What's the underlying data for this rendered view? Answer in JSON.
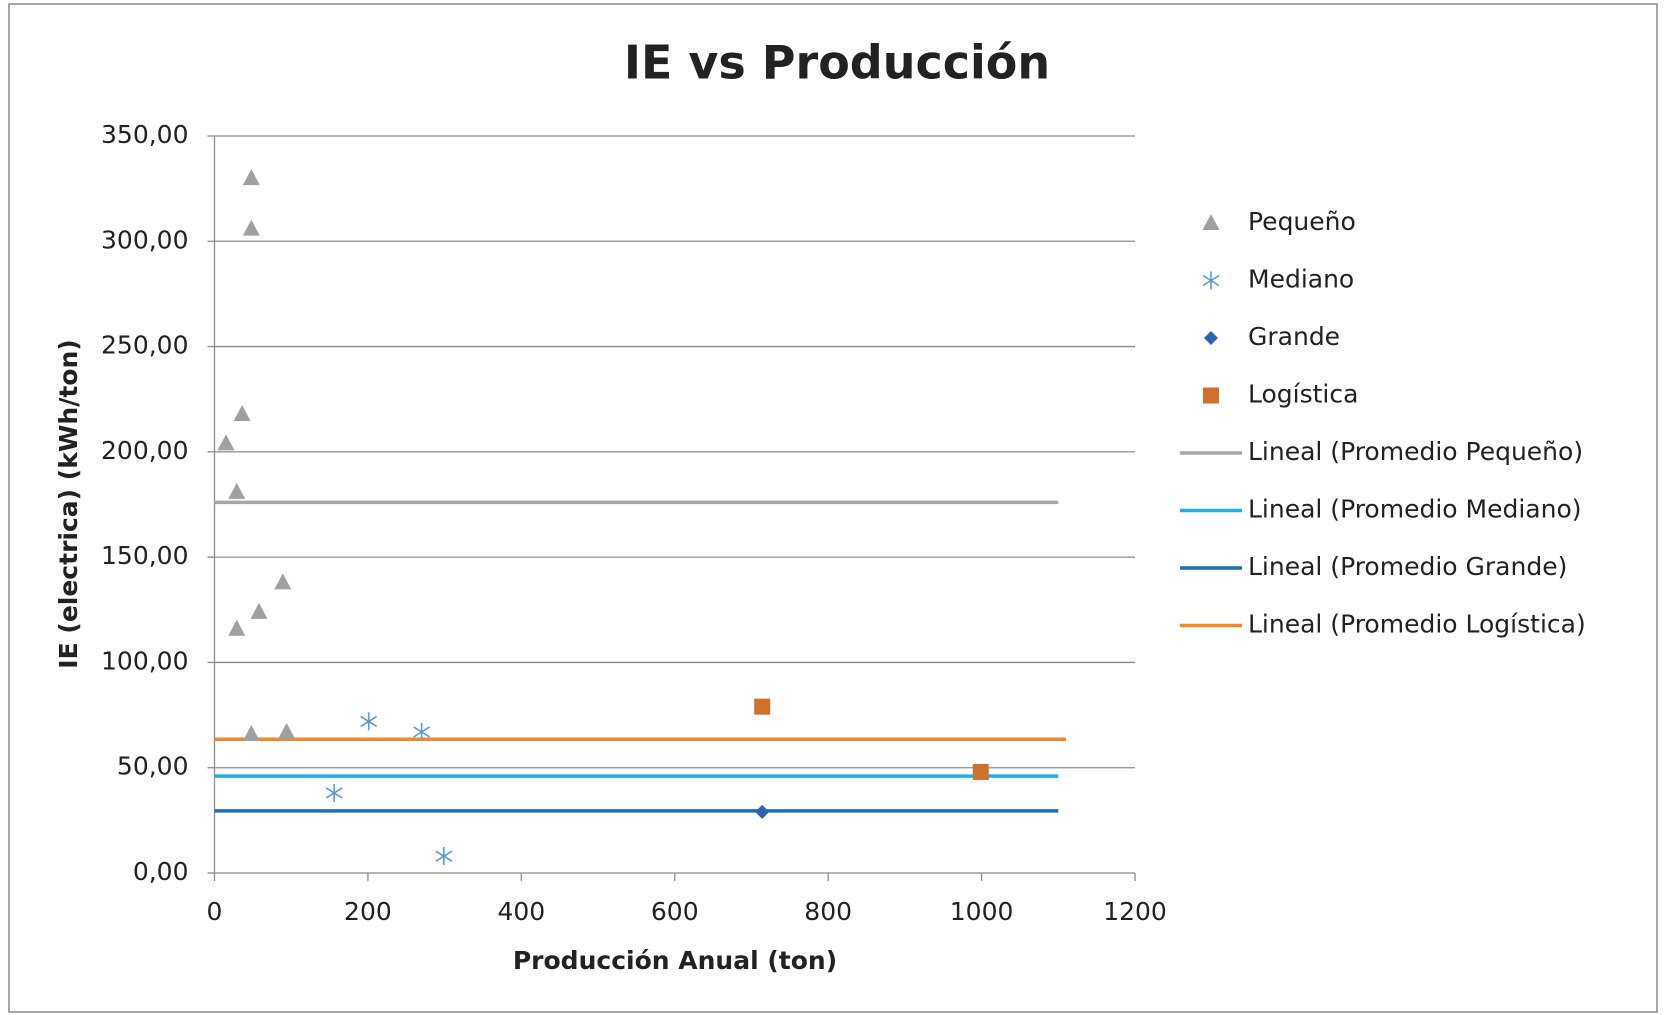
{
  "chart_data": {
    "type": "scatter",
    "title": "IE vs Producción",
    "xlabel": "Producción Anual (ton)",
    "ylabel": "IE (electrica) (kWh/ton)",
    "xlim": [
      0,
      1200
    ],
    "xticks": [
      0,
      200,
      400,
      600,
      800,
      1000,
      1200
    ],
    "ylim": [
      0,
      350
    ],
    "yticks": [
      {
        "value": 0,
        "label": "0,00"
      },
      {
        "value": 50,
        "label": "50,00"
      },
      {
        "value": 100,
        "label": "100,00"
      },
      {
        "value": 150,
        "label": "150,00"
      },
      {
        "value": 200,
        "label": "200,00"
      },
      {
        "value": 250,
        "label": "250,00"
      },
      {
        "value": 300,
        "label": "300,00"
      },
      {
        "value": 350,
        "label": "350,00"
      }
    ],
    "grid": true,
    "legend": "right",
    "series": [
      {
        "name": "Pequeño",
        "marker": "triangle",
        "color": "#a0a0a0",
        "x": [
          48,
          48,
          36,
          15,
          29,
          89,
          58,
          29,
          48,
          94
        ],
        "values": [
          330,
          306,
          218,
          204,
          181,
          138,
          124,
          116,
          66,
          67
        ]
      },
      {
        "name": "Mediano",
        "marker": "asterisk",
        "color": "#5b9bd5",
        "x": [
          201,
          270,
          156,
          299
        ],
        "values": [
          72,
          67,
          38,
          8
        ]
      },
      {
        "name": "Grande",
        "marker": "diamond",
        "color": "#2e63b4",
        "x": [
          714
        ],
        "values": [
          29
        ]
      },
      {
        "name": "Logística",
        "marker": "square",
        "color": "#d0702c",
        "x": [
          714,
          999
        ],
        "values": [
          79,
          48
        ]
      },
      {
        "name": "Lineal (Promedio Pequeño)",
        "marker": "line",
        "color": "#a6a6a6",
        "x": [
          0,
          1100
        ],
        "values": [
          176,
          176
        ]
      },
      {
        "name": "Lineal (Promedio Mediano)",
        "marker": "line",
        "color": "#1fb0e8",
        "x": [
          0,
          1100
        ],
        "values": [
          46,
          46
        ]
      },
      {
        "name": "Lineal (Promedio Grande)",
        "marker": "line",
        "color": "#1e6fba",
        "x": [
          0,
          1100
        ],
        "values": [
          29.5,
          29.5
        ]
      },
      {
        "name": "Lineal (Promedio Logística)",
        "marker": "line",
        "color": "#f0892a",
        "x": [
          0,
          1110
        ],
        "values": [
          63.5,
          63.5
        ]
      }
    ]
  }
}
